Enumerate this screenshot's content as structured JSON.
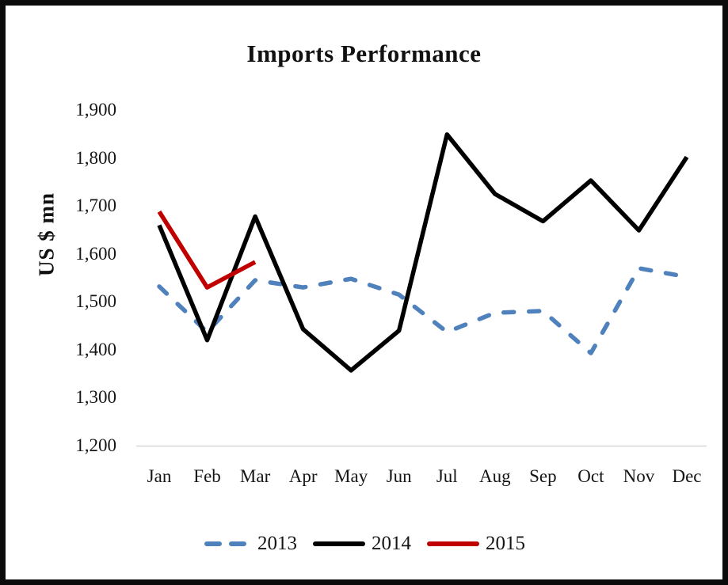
{
  "chart_data": {
    "type": "line",
    "title": "Imports Performance",
    "xlabel": "",
    "ylabel": "US $ mn",
    "categories": [
      "Jan",
      "Feb",
      "Mar",
      "Apr",
      "May",
      "Jun",
      "Jul",
      "Aug",
      "Sep",
      "Oct",
      "Nov",
      "Dec"
    ],
    "ylim": [
      1200,
      1900
    ],
    "y_ticks": [
      1900,
      1800,
      1700,
      1600,
      1500,
      1400,
      1300,
      1200
    ],
    "y_tick_labels": [
      "1,900",
      "1,800",
      "1,700",
      "1,600",
      "1,500",
      "1,400",
      "1,300",
      "1,200"
    ],
    "grid": "baseline only (at 1,200)",
    "legend_position": "bottom center",
    "baseline_color": "#D8D8D8",
    "series": [
      {
        "name": "2013",
        "color": "#4F81BD",
        "style": "dashed",
        "values": [
          1532,
          1437,
          1545,
          1530,
          1548,
          1515,
          1437,
          1477,
          1481,
          1393,
          1570,
          1552
        ]
      },
      {
        "name": "2014",
        "color": "#000000",
        "style": "solid",
        "values": [
          1660,
          1420,
          1678,
          1443,
          1357,
          1440,
          1849,
          1725,
          1668,
          1753,
          1649,
          1802
        ]
      },
      {
        "name": "2015",
        "color": "#C00000",
        "style": "solid",
        "values": [
          1688,
          1530,
          1583,
          null,
          null,
          null,
          null,
          null,
          null,
          null,
          null,
          null
        ]
      }
    ]
  }
}
